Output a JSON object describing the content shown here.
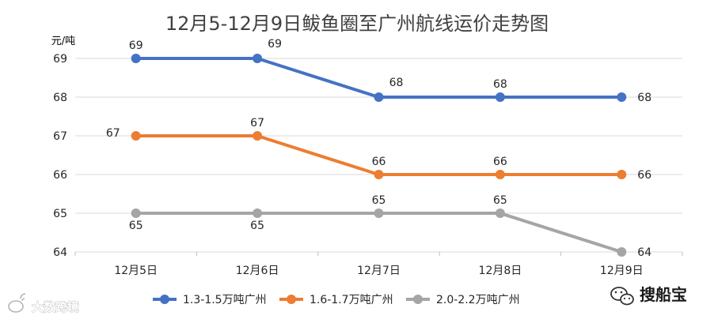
{
  "chart_data": {
    "type": "line",
    "title": "12月5-12月9日鲅鱼圈至广州航线运价走势图",
    "ylabel": "元/吨",
    "xlabel": "",
    "categories": [
      "12月5日",
      "12月6日",
      "12月7日",
      "12月8日",
      "12月9日"
    ],
    "ylim": [
      64,
      69
    ],
    "y_ticks": [
      "64",
      "65",
      "66",
      "67",
      "68",
      "69"
    ],
    "grid": "horizontal",
    "legend_position": "bottom",
    "series": [
      {
        "name": "1.3-1.5万吨广州",
        "color": "#4472C4",
        "values": [
          69,
          69,
          68,
          68,
          68
        ]
      },
      {
        "name": "1.6-1.7万吨广州",
        "color": "#ED7D31",
        "values": [
          67,
          67,
          66,
          66,
          66
        ]
      },
      {
        "name": "2.0-2.2万吨广州",
        "color": "#A5A5A5",
        "values": [
          65,
          65,
          65,
          65,
          64
        ]
      }
    ]
  },
  "watermarks": {
    "left_text": "大数跨境",
    "right_text": "搜船宝",
    "left_icon": "weibo-style-logo-icon",
    "right_icon": "wechat-logo-icon"
  }
}
